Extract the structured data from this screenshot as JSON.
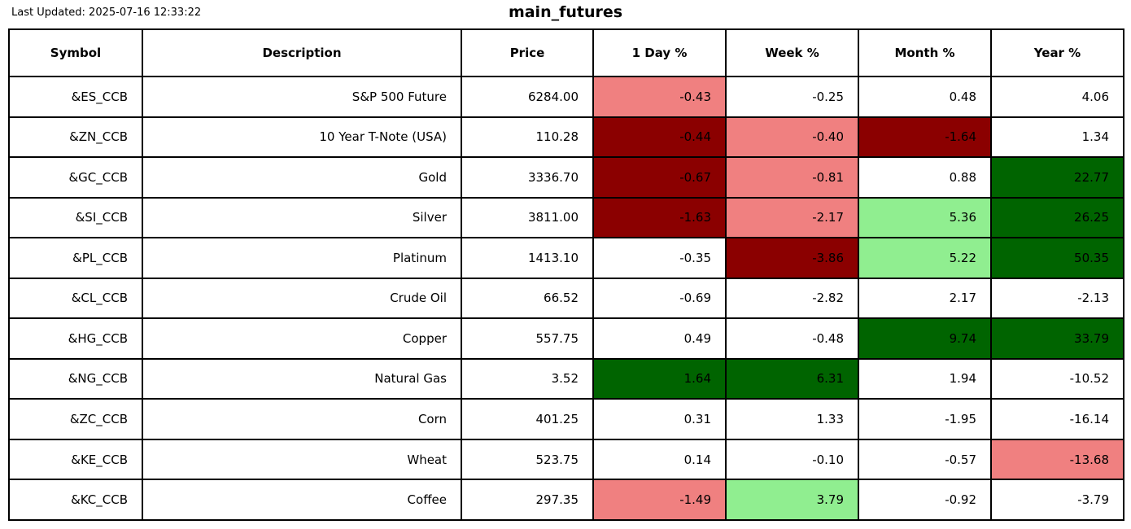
{
  "header": {
    "last_updated": "Last Updated: 2025-07-16 12:33:22",
    "title": "main_futures"
  },
  "colors": {
    "white": "#FFFFFF",
    "lightred": "#F08080",
    "darkred": "#8B0000",
    "lightgreen": "#90EE90",
    "darkgreen": "#006400",
    "border": "#000000"
  },
  "chart_data": {
    "type": "table",
    "title": "main_futures",
    "columns": [
      "Symbol",
      "Description",
      "Price",
      "1 Day %",
      "Week %",
      "Month %",
      "Year %"
    ],
    "rows": [
      {
        "symbol": "&ES_CCB",
        "description": "S&P 500 Future",
        "price": "6284.00",
        "pcts": [
          {
            "v": "-0.43",
            "c": "lightred"
          },
          {
            "v": "-0.25",
            "c": "white"
          },
          {
            "v": "0.48",
            "c": "white"
          },
          {
            "v": "4.06",
            "c": "white"
          }
        ]
      },
      {
        "symbol": "&ZN_CCB",
        "description": "10 Year T-Note (USA)",
        "price": "110.28",
        "pcts": [
          {
            "v": "-0.44",
            "c": "darkred"
          },
          {
            "v": "-0.40",
            "c": "lightred"
          },
          {
            "v": "-1.64",
            "c": "darkred"
          },
          {
            "v": "1.34",
            "c": "white"
          }
        ]
      },
      {
        "symbol": "&GC_CCB",
        "description": "Gold",
        "price": "3336.70",
        "pcts": [
          {
            "v": "-0.67",
            "c": "darkred"
          },
          {
            "v": "-0.81",
            "c": "lightred"
          },
          {
            "v": "0.88",
            "c": "white"
          },
          {
            "v": "22.77",
            "c": "darkgreen"
          }
        ]
      },
      {
        "symbol": "&SI_CCB",
        "description": "Silver",
        "price": "3811.00",
        "pcts": [
          {
            "v": "-1.63",
            "c": "darkred"
          },
          {
            "v": "-2.17",
            "c": "lightred"
          },
          {
            "v": "5.36",
            "c": "lightgreen"
          },
          {
            "v": "26.25",
            "c": "darkgreen"
          }
        ]
      },
      {
        "symbol": "&PL_CCB",
        "description": "Platinum",
        "price": "1413.10",
        "pcts": [
          {
            "v": "-0.35",
            "c": "white"
          },
          {
            "v": "-3.86",
            "c": "darkred"
          },
          {
            "v": "5.22",
            "c": "lightgreen"
          },
          {
            "v": "50.35",
            "c": "darkgreen"
          }
        ]
      },
      {
        "symbol": "&CL_CCB",
        "description": "Crude Oil",
        "price": "66.52",
        "pcts": [
          {
            "v": "-0.69",
            "c": "white"
          },
          {
            "v": "-2.82",
            "c": "white"
          },
          {
            "v": "2.17",
            "c": "white"
          },
          {
            "v": "-2.13",
            "c": "white"
          }
        ]
      },
      {
        "symbol": "&HG_CCB",
        "description": "Copper",
        "price": "557.75",
        "pcts": [
          {
            "v": "0.49",
            "c": "white"
          },
          {
            "v": "-0.48",
            "c": "white"
          },
          {
            "v": "9.74",
            "c": "darkgreen"
          },
          {
            "v": "33.79",
            "c": "darkgreen"
          }
        ]
      },
      {
        "symbol": "&NG_CCB",
        "description": "Natural Gas",
        "price": "3.52",
        "pcts": [
          {
            "v": "1.64",
            "c": "darkgreen"
          },
          {
            "v": "6.31",
            "c": "darkgreen"
          },
          {
            "v": "1.94",
            "c": "white"
          },
          {
            "v": "-10.52",
            "c": "white"
          }
        ]
      },
      {
        "symbol": "&ZC_CCB",
        "description": "Corn",
        "price": "401.25",
        "pcts": [
          {
            "v": "0.31",
            "c": "white"
          },
          {
            "v": "1.33",
            "c": "white"
          },
          {
            "v": "-1.95",
            "c": "white"
          },
          {
            "v": "-16.14",
            "c": "white"
          }
        ]
      },
      {
        "symbol": "&KE_CCB",
        "description": "Wheat",
        "price": "523.75",
        "pcts": [
          {
            "v": "0.14",
            "c": "white"
          },
          {
            "v": "-0.10",
            "c": "white"
          },
          {
            "v": "-0.57",
            "c": "white"
          },
          {
            "v": "-13.68",
            "c": "lightred"
          }
        ]
      },
      {
        "symbol": "&KC_CCB",
        "description": "Coffee",
        "price": "297.35",
        "pcts": [
          {
            "v": "-1.49",
            "c": "lightred"
          },
          {
            "v": "3.79",
            "c": "lightgreen"
          },
          {
            "v": "-0.92",
            "c": "white"
          },
          {
            "v": "-3.79",
            "c": "white"
          }
        ]
      }
    ]
  }
}
